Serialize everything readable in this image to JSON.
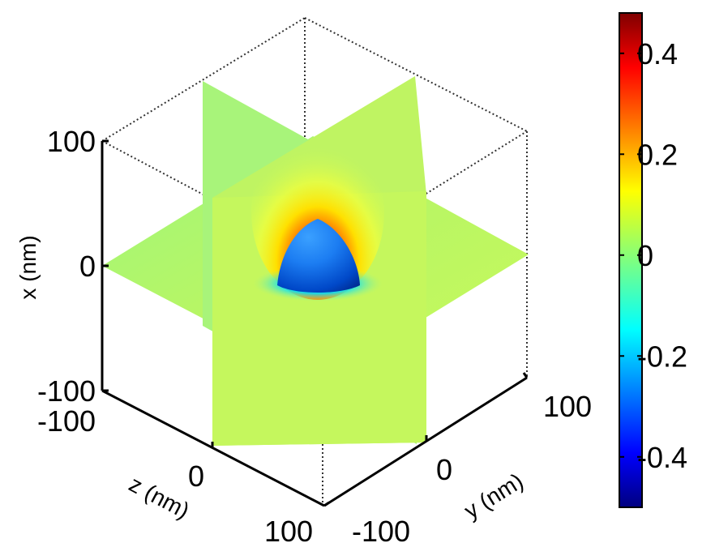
{
  "chart_data": {
    "type": "3d-slice",
    "title": "",
    "axes": {
      "x": {
        "label": "x (nm)",
        "range": [
          -100,
          100
        ],
        "ticks": [
          "-100",
          "0",
          "100"
        ]
      },
      "y": {
        "label": "y (nm)",
        "range": [
          -100,
          100
        ],
        "ticks": [
          "-100",
          "0",
          "100"
        ]
      },
      "z": {
        "label": "z (nm)",
        "range": [
          -100,
          100
        ],
        "ticks": [
          "-100",
          "0",
          "100"
        ]
      }
    },
    "slices": [
      "x=0",
      "y=0",
      "z=0"
    ],
    "object": "hemisphere",
    "colorbar": {
      "colormap": "jet",
      "range": [
        -0.5,
        0.48
      ],
      "ticks": [
        {
          "value": 0.4,
          "label": "0.4"
        },
        {
          "value": 0.2,
          "label": "0.2"
        },
        {
          "value": 0,
          "label": "0"
        },
        {
          "value": -0.2,
          "label": "-0.2"
        },
        {
          "value": -0.4,
          "label": "-0.4"
        }
      ]
    },
    "grid": false,
    "box": true
  }
}
